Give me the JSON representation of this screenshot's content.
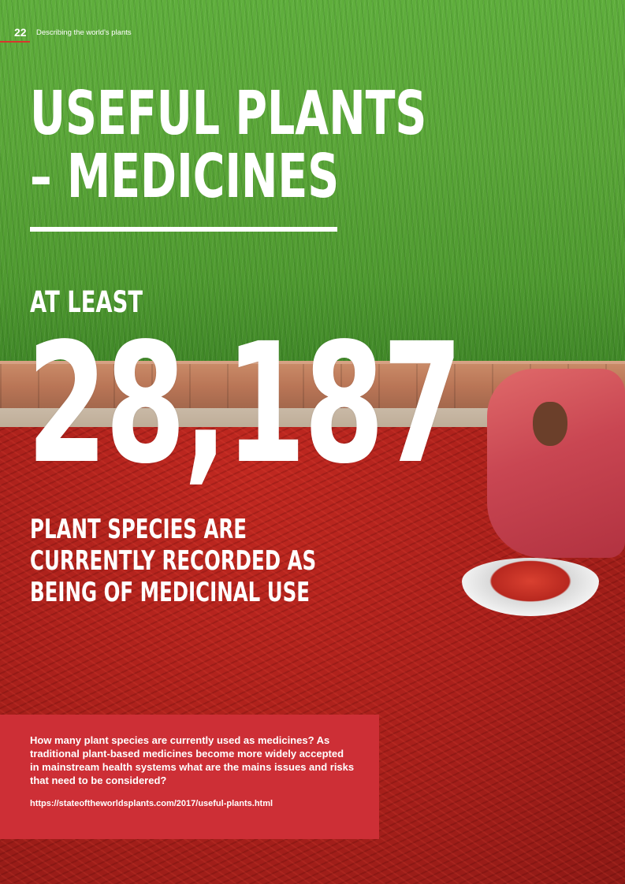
{
  "header": {
    "page_number": "22",
    "section": "Describing the world's plants"
  },
  "headline": {
    "line1": "USEFUL PLANTS",
    "line2": "– MEDICINES"
  },
  "stat": {
    "prefix": "AT LEAST",
    "number": "28,187",
    "caption": "PLANT SPECIES ARE CURRENTLY RECORDED AS BEING OF MEDICINAL USE"
  },
  "infobox": {
    "text": "How many plant species are currently used as medicines? As traditional plant-based medicines become more widely accepted in mainstream health systems what are the mains issues and risks that need to be considered?",
    "link": "https://stateoftheworldsplants.com/2017/useful-plants.html"
  },
  "colors": {
    "accent": "#cd2f36",
    "field_green": "#5aa638",
    "chili_red": "#b0201c"
  }
}
